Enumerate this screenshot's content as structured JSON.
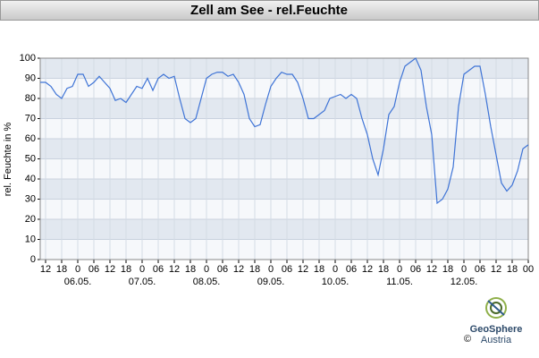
{
  "chart_data": {
    "type": "line",
    "title": "Zell am See - rel.Feuchte",
    "y_label": "rel. Feuchte in %",
    "x": [
      10,
      12,
      14,
      16,
      18,
      20,
      22,
      24,
      26,
      28,
      30,
      32,
      34,
      36,
      38,
      40,
      42,
      44,
      46,
      48,
      50,
      52,
      54,
      56,
      58,
      60,
      62,
      64,
      66,
      68,
      70,
      72,
      74,
      76,
      78,
      80,
      82,
      84,
      86,
      88,
      90,
      92,
      94,
      96,
      98,
      100,
      102,
      104,
      106,
      108,
      110,
      112,
      114,
      116,
      118,
      120,
      122,
      124,
      126,
      128,
      130,
      132,
      134,
      136,
      138,
      140,
      142,
      144,
      146,
      148,
      150,
      152,
      154,
      156,
      158,
      160,
      162,
      164,
      166,
      168,
      170,
      172,
      174,
      176,
      178,
      180,
      182,
      184,
      186,
      188,
      190,
      192
    ],
    "series": [
      {
        "name": "rel.Feuchte",
        "color": "#3f74d6",
        "values": [
          88,
          88,
          86,
          82,
          80,
          85,
          86,
          92,
          92,
          86,
          88,
          91,
          88,
          85,
          79,
          80,
          78,
          82,
          86,
          85,
          90,
          84,
          90,
          92,
          90,
          91,
          80,
          70,
          68,
          70,
          80,
          90,
          92,
          93,
          93,
          91,
          92,
          88,
          82,
          70,
          66,
          67,
          77,
          86,
          90,
          93,
          92,
          92,
          88,
          80,
          70,
          70,
          72,
          74,
          80,
          81,
          82,
          80,
          82,
          80,
          70,
          62,
          50,
          42,
          55,
          72,
          76,
          88,
          96,
          98,
          100,
          94,
          76,
          62,
          28,
          30,
          35,
          46,
          76,
          92,
          94,
          96,
          96,
          82,
          66,
          52,
          38,
          34,
          37,
          44,
          55,
          57
        ]
      }
    ],
    "xlim": [
      10,
      192
    ],
    "xticks": [
      12,
      18,
      {
        "value": 24,
        "label": "0"
      },
      {
        "value": 30,
        "label": "06"
      },
      {
        "value": 36,
        "label": "12"
      },
      {
        "value": 42,
        "label": "18"
      },
      {
        "value": 48,
        "label": "0"
      },
      {
        "value": 54,
        "label": "06"
      },
      {
        "value": 60,
        "label": "12"
      },
      {
        "value": 66,
        "label": "18"
      },
      {
        "value": 72,
        "label": "0"
      },
      {
        "value": 78,
        "label": "06"
      },
      {
        "value": 84,
        "label": "12"
      },
      {
        "value": 90,
        "label": "18"
      },
      {
        "value": 96,
        "label": "0"
      },
      {
        "value": 102,
        "label": "06"
      },
      {
        "value": 108,
        "label": "12"
      },
      {
        "value": 114,
        "label": "18"
      },
      {
        "value": 120,
        "label": "0"
      },
      {
        "value": 126,
        "label": "06"
      },
      {
        "value": 132,
        "label": "12"
      },
      {
        "value": 138,
        "label": "18"
      },
      {
        "value": 144,
        "label": "0"
      },
      {
        "value": 150,
        "label": "06"
      },
      {
        "value": 156,
        "label": "12"
      },
      {
        "value": 162,
        "label": "18"
      },
      {
        "value": 168,
        "label": "0"
      },
      {
        "value": 174,
        "label": "06"
      },
      {
        "value": 180,
        "label": "12"
      },
      {
        "value": 186,
        "label": "18"
      },
      {
        "value": 192,
        "label": "00"
      }
    ],
    "x_date_ticks": [
      {
        "value": 24,
        "label": "06.05."
      },
      {
        "value": 48,
        "label": "07.05."
      },
      {
        "value": 72,
        "label": "08.05."
      },
      {
        "value": 96,
        "label": "09.05."
      },
      {
        "value": 120,
        "label": "10.05."
      },
      {
        "value": 144,
        "label": "11.05."
      },
      {
        "value": 168,
        "label": "12.05."
      }
    ],
    "ylim": [
      0,
      100
    ],
    "yticks": [
      0,
      10,
      20,
      30,
      40,
      50,
      60,
      70,
      80,
      90,
      100
    ],
    "grid": true,
    "logo": {
      "name": "GeoSphere",
      "sub": "Austria",
      "copyright": "©"
    }
  }
}
